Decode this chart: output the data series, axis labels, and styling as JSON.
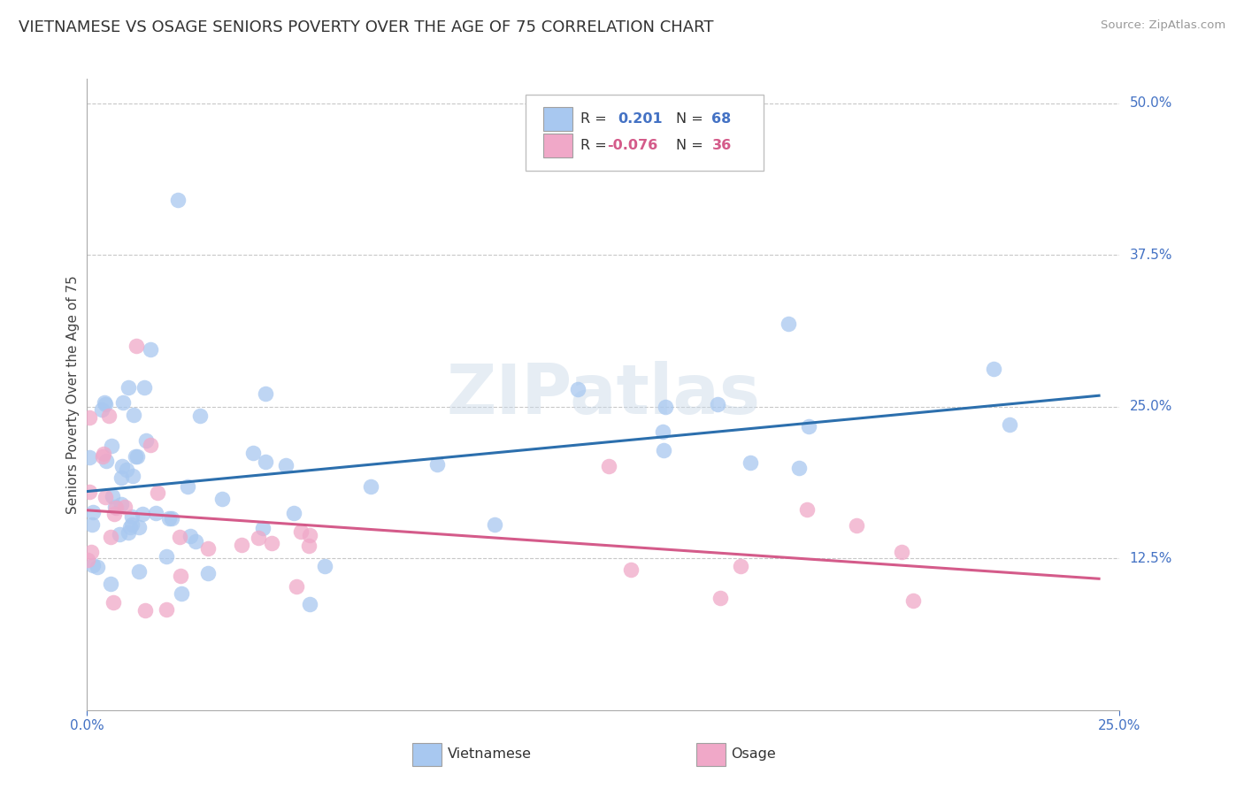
{
  "title": "VIETNAMESE VS OSAGE SENIORS POVERTY OVER THE AGE OF 75 CORRELATION CHART",
  "source": "Source: ZipAtlas.com",
  "ylabel": "Seniors Poverty Over the Age of 75",
  "blue_color": "#a8c8f0",
  "pink_color": "#f0a8c8",
  "blue_line_color": "#2c6fad",
  "pink_line_color": "#d45b8a",
  "watermark": "ZIPatlas",
  "title_fontsize": 13,
  "label_fontsize": 11,
  "tick_fontsize": 11,
  "xlim": [
    0.0,
    0.25
  ],
  "ylim": [
    0.0,
    0.52
  ],
  "viet_seed": 7,
  "osage_seed": 13,
  "blue_intercept": 0.168,
  "blue_slope": 0.32,
  "pink_intercept": 0.158,
  "pink_slope": -0.14
}
